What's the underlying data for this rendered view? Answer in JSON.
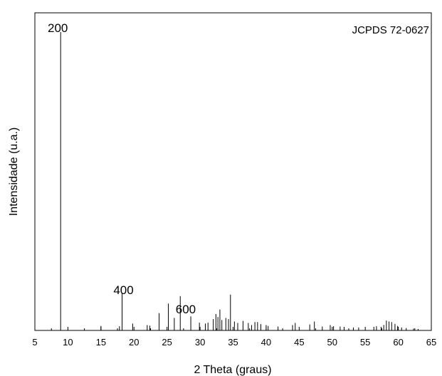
{
  "chart_data": {
    "type": "bar",
    "title": "",
    "legend_text": "JCPDS 72-0627",
    "legend_position": "top-right",
    "xlabel": "2 Theta (graus)",
    "ylabel": "Intensidade (u.a.)",
    "xlim": [
      5,
      65
    ],
    "ylim": [
      0,
      100
    ],
    "x_ticks": [
      5,
      10,
      15,
      20,
      25,
      30,
      35,
      40,
      45,
      50,
      55,
      60,
      65
    ],
    "y_ticks_shown": false,
    "grid": false,
    "peak_labels": [
      {
        "text": "200",
        "x": 8.9
      },
      {
        "text": "400",
        "x": 18.2
      },
      {
        "text": "600",
        "x": 27.4
      }
    ],
    "x": [
      8.9,
      15.0,
      17.8,
      18.2,
      19.8,
      22.0,
      22.4,
      23.8,
      25.2,
      26.1,
      27.0,
      28.6,
      29.9,
      30.8,
      31.2,
      32.0,
      32.4,
      32.7,
      33.0,
      33.3,
      33.9,
      34.3,
      34.6,
      35.2,
      35.7,
      36.5,
      37.3,
      37.8,
      38.3,
      38.7,
      39.2,
      40.0,
      40.3,
      41.8,
      44.0,
      44.4,
      46.6,
      47.3,
      48.5,
      49.7,
      50.2,
      51.2,
      51.8,
      53.2,
      54.0,
      56.3,
      56.7,
      57.4,
      57.8,
      58.2,
      58.6,
      59.0,
      59.5,
      59.9,
      60.5,
      61.2,
      62.3,
      63.0
    ],
    "values": [
      100,
      1.5,
      1.4,
      12.5,
      2.3,
      1.8,
      1.6,
      5.8,
      9.0,
      4.2,
      11.5,
      4.7,
      2.6,
      2.3,
      2.6,
      3.8,
      5.5,
      4.5,
      7.0,
      3.5,
      4.2,
      3.8,
      12.0,
      3.0,
      2.5,
      3.2,
      2.5,
      1.8,
      2.8,
      2.8,
      2.1,
      1.8,
      1.5,
      1.3,
      1.8,
      2.5,
      2.0,
      3.0,
      1.3,
      1.8,
      1.4,
      1.3,
      1.2,
      1.0,
      1.0,
      1.2,
      1.4,
      1.2,
      1.8,
      3.3,
      3.0,
      2.8,
      2.2,
      1.5,
      1.0,
      0.8,
      0.6,
      0.5
    ]
  }
}
